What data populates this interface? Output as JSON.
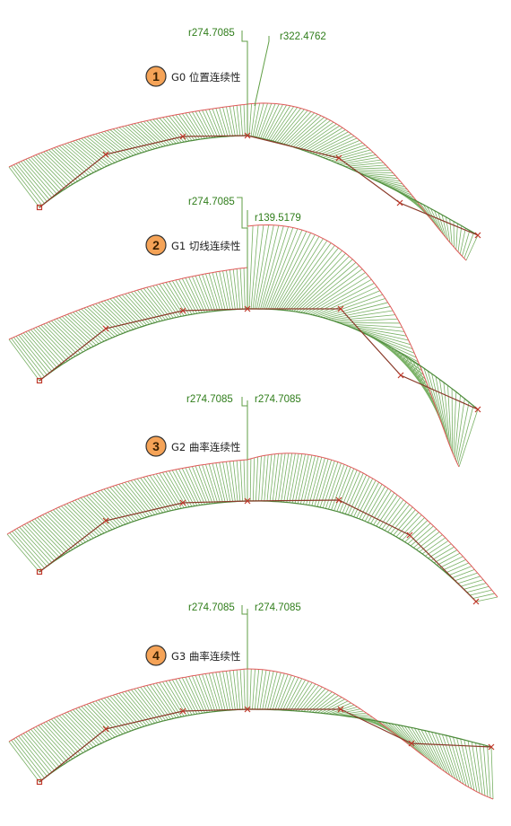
{
  "colors": {
    "comb": "#78b064",
    "envelope": "#e05a5a",
    "curve": "#4c8a3a",
    "control_polygon": "#8a3a2a",
    "marker": "#c0392b",
    "leader": "#5f9e44",
    "label": "#2f7d1a",
    "badge_fill": "#f5a357",
    "badge_stroke": "#333333"
  },
  "panels": [
    {
      "number": "1",
      "title": "G0 位置连续性",
      "left_radius": "r274.7085",
      "right_radius": "r322.4762"
    },
    {
      "number": "2",
      "title": "G1 切线连续性",
      "left_radius": "r274.7085",
      "right_radius": "r139.5179"
    },
    {
      "number": "3",
      "title": "G2 曲率连续性",
      "left_radius": "r274.7085",
      "right_radius": "r274.7085"
    },
    {
      "number": "4",
      "title": "G3 曲率连续性",
      "left_radius": "r274.7085",
      "right_radius": "r274.7085"
    }
  ]
}
